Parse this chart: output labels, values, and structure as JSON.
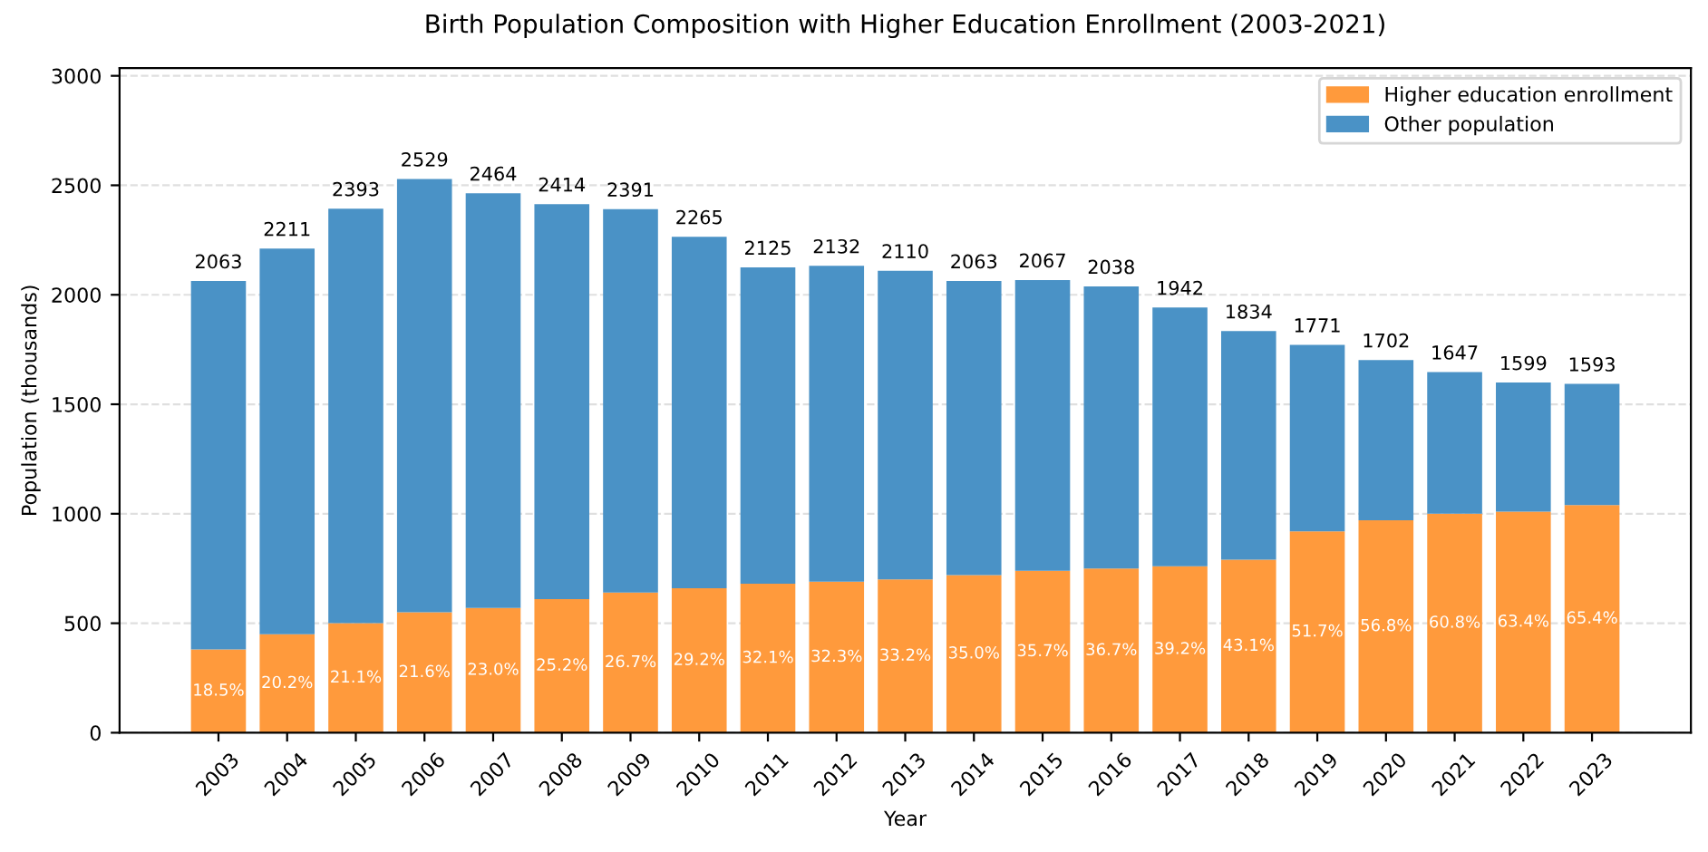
{
  "chart_data": {
    "type": "bar",
    "stacked": true,
    "title": "Birth Population Composition with Higher Education Enrollment (2003-2021)",
    "xlabel": "Year",
    "ylabel": "Population (thousands)",
    "categories": [
      "2003",
      "2004",
      "2005",
      "2006",
      "2007",
      "2008",
      "2009",
      "2010",
      "2011",
      "2012",
      "2013",
      "2014",
      "2015",
      "2016",
      "2017",
      "2018",
      "2019",
      "2020",
      "2021",
      "2022",
      "2023"
    ],
    "series": [
      {
        "name": "Higher education enrollment",
        "color": "#ff9a3c",
        "values": [
          380,
          450,
          500,
          550,
          570,
          610,
          640,
          660,
          680,
          690,
          700,
          720,
          740,
          750,
          760,
          790,
          920,
          970,
          1000,
          1010,
          1040
        ]
      },
      {
        "name": "Other population",
        "color": "#4a92c6",
        "values": [
          1683,
          1761,
          1893,
          1979,
          1894,
          1804,
          1751,
          1605,
          1445,
          1442,
          1410,
          1343,
          1327,
          1288,
          1182,
          1044,
          851,
          732,
          647,
          589,
          553
        ]
      }
    ],
    "totals": [
      "2063",
      "2211",
      "2393",
      "2529",
      "2464",
      "2414",
      "2391",
      "2265",
      "2125",
      "2132",
      "2110",
      "2063",
      "2067",
      "2038",
      "1942",
      "1834",
      "1771",
      "1702",
      "1647",
      "1599",
      "1593"
    ],
    "annotations": [
      "18.5%",
      "20.2%",
      "21.1%",
      "21.6%",
      "23.0%",
      "25.2%",
      "26.7%",
      "29.2%",
      "32.1%",
      "32.3%",
      "33.2%",
      "35.0%",
      "35.7%",
      "36.7%",
      "39.2%",
      "43.1%",
      "51.7%",
      "56.8%",
      "60.8%",
      "63.4%",
      "65.4%"
    ],
    "ylim": [
      0,
      3035
    ],
    "yticks": [
      0,
      500,
      1000,
      1500,
      2000,
      2500,
      3000
    ],
    "grid": "y",
    "legend": "top right"
  }
}
